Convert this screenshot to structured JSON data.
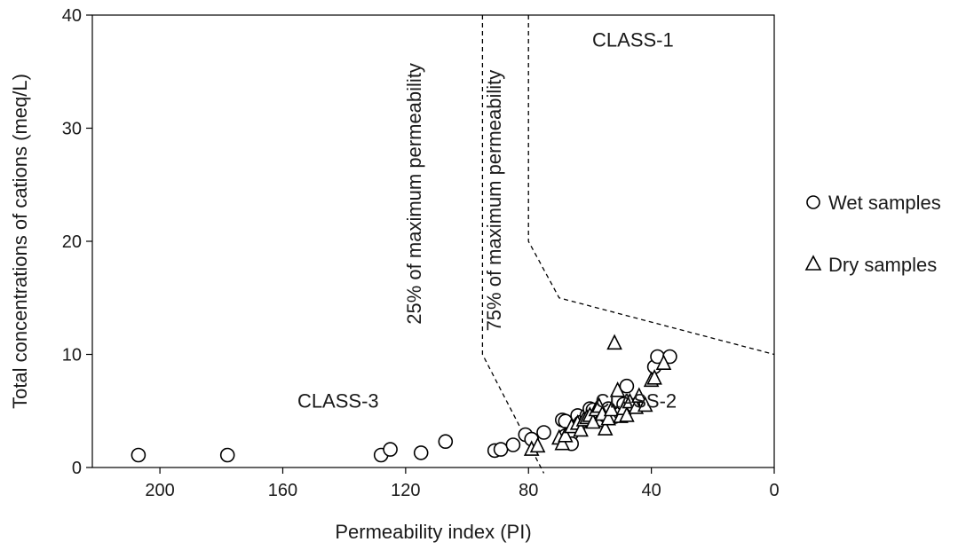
{
  "chart_data": {
    "type": "scatter",
    "xlabel": "Permeability index (PI)",
    "ylabel": "Total concentrations of cations (meq/L)",
    "x_reversed": true,
    "xlim": [
      0,
      222
    ],
    "ylim": [
      0,
      40
    ],
    "x_ticks": [
      200,
      160,
      120,
      80,
      40,
      0
    ],
    "y_ticks": [
      0,
      10,
      20,
      30,
      40
    ],
    "grid": false,
    "legend_position": "right",
    "series": [
      {
        "name": "Wet samples",
        "marker": "circle",
        "points": [
          [
            207,
            1.1
          ],
          [
            178,
            1.1
          ],
          [
            128,
            1.1
          ],
          [
            125,
            1.6
          ],
          [
            115,
            1.3
          ],
          [
            107,
            2.3
          ],
          [
            91,
            1.5
          ],
          [
            89,
            1.6
          ],
          [
            85,
            2.0
          ],
          [
            81,
            2.9
          ],
          [
            79,
            2.5
          ],
          [
            75,
            3.1
          ],
          [
            69,
            4.2
          ],
          [
            68,
            4.1
          ],
          [
            68,
            2.8
          ],
          [
            66,
            3.0
          ],
          [
            66,
            2.1
          ],
          [
            64,
            4.6
          ],
          [
            63,
            4.0
          ],
          [
            61,
            4.6
          ],
          [
            60,
            5.2
          ],
          [
            59,
            5.1
          ],
          [
            58,
            4.4
          ],
          [
            57,
            4.8
          ],
          [
            56,
            4.2
          ],
          [
            55,
            4.6
          ],
          [
            54,
            5.2
          ],
          [
            52,
            4.5
          ],
          [
            50,
            4.8
          ],
          [
            49,
            5.6
          ],
          [
            48,
            7.2
          ],
          [
            46,
            5.5
          ],
          [
            39,
            8.9
          ],
          [
            38,
            9.8
          ],
          [
            34,
            9.8
          ]
        ]
      },
      {
        "name": "Dry samples",
        "marker": "triangle",
        "points": [
          [
            79,
            1.6
          ],
          [
            77,
            1.9
          ],
          [
            70,
            2.6
          ],
          [
            69,
            2.1
          ],
          [
            68,
            2.8
          ],
          [
            66,
            3.6
          ],
          [
            64,
            3.9
          ],
          [
            63,
            3.3
          ],
          [
            62,
            4.2
          ],
          [
            61,
            4.4
          ],
          [
            60,
            4.6
          ],
          [
            59,
            4.0
          ],
          [
            58,
            5.1
          ],
          [
            57,
            5.4
          ],
          [
            56,
            4.7
          ],
          [
            55,
            3.4
          ],
          [
            54,
            4.3
          ],
          [
            53,
            5.1
          ],
          [
            52,
            11.0
          ],
          [
            51,
            6.8
          ],
          [
            50,
            4.5
          ],
          [
            49,
            5.2
          ],
          [
            48,
            4.6
          ],
          [
            47,
            5.8
          ],
          [
            45,
            5.3
          ],
          [
            44,
            6.3
          ],
          [
            42,
            5.5
          ],
          [
            40,
            7.7
          ],
          [
            39,
            7.9
          ],
          [
            36,
            9.2
          ]
        ]
      }
    ],
    "boundary_lines": [
      {
        "name": "25% of maximum permeability",
        "points": [
          [
            95,
            40
          ],
          [
            95,
            10
          ],
          [
            75,
            -0.5
          ]
        ]
      },
      {
        "name": "75% of maximum permeability",
        "points": [
          [
            80,
            40
          ],
          [
            80,
            20
          ],
          [
            70,
            15
          ],
          [
            0,
            10
          ]
        ]
      }
    ],
    "annotations": [
      {
        "text": "CLASS-1",
        "x": 46,
        "y": 37.2
      },
      {
        "text": "CLASS-2",
        "x": 45,
        "y": 5.3
      },
      {
        "text": "CLASS-3",
        "x": 142,
        "y": 5.3
      },
      {
        "text": "25% of maximum permeability",
        "x": 115,
        "y": 24.2,
        "rotate": -90
      },
      {
        "text": "75% of maximum permeability",
        "x": 89,
        "y": 23.6,
        "rotate": -90
      }
    ],
    "legend": [
      {
        "label": "Wet samples",
        "symbol": "○"
      },
      {
        "label": "Dry samples",
        "symbol": "△"
      }
    ]
  }
}
